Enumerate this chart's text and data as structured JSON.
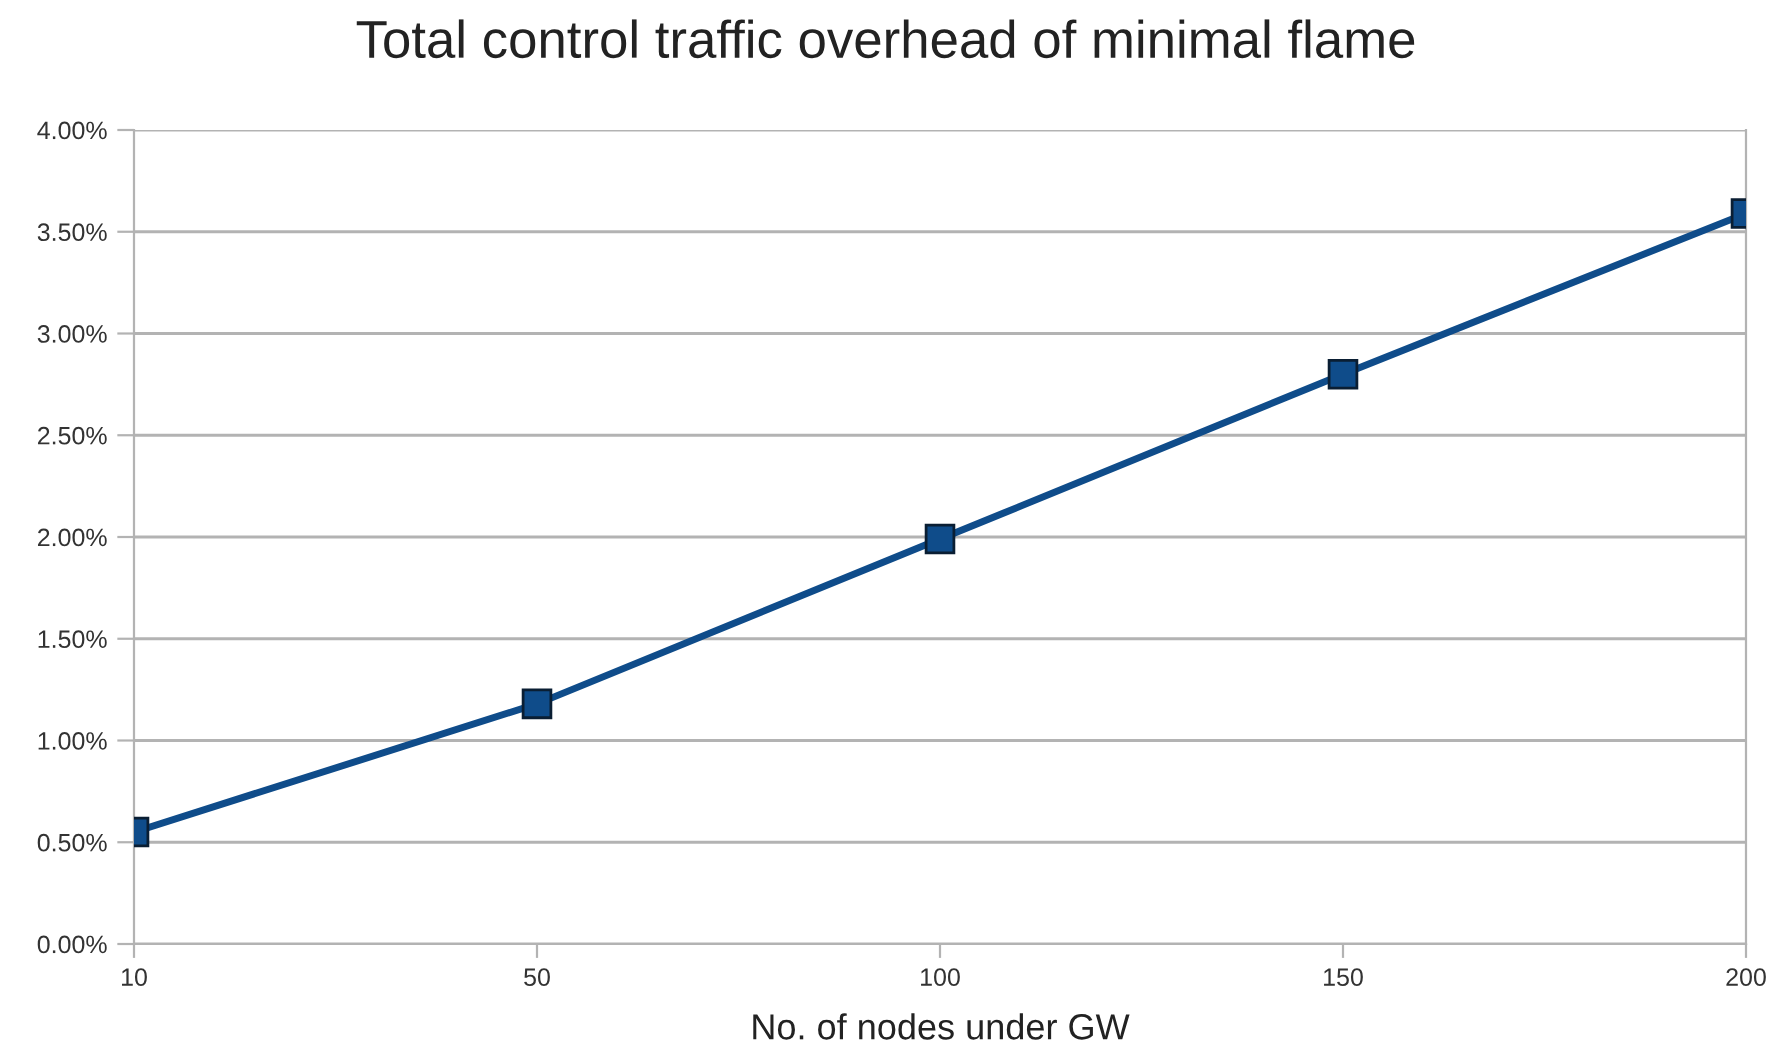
{
  "chart_data": {
    "type": "line",
    "title": "Total control traffic overhead of minimal flame",
    "xlabel": "No. of nodes under GW",
    "categories": [
      "10",
      "50",
      "100",
      "150",
      "200"
    ],
    "series": [
      {
        "color": "#0f4c8a",
        "values": [
          0.55,
          1.18,
          1.99,
          2.8,
          3.59
        ]
      }
    ],
    "ylim": [
      0,
      4
    ],
    "yticks": [
      {
        "value": 0,
        "label": "0.00%"
      },
      {
        "value": 0.5,
        "label": "0.50%"
      },
      {
        "value": 1,
        "label": "1.00%"
      },
      {
        "value": 1.5,
        "label": "1.50%"
      },
      {
        "value": 2,
        "label": "2.00%"
      },
      {
        "value": 2.5,
        "label": "2.50%"
      },
      {
        "value": 3,
        "label": "3.00%"
      },
      {
        "value": 3.5,
        "label": "3.50%"
      },
      {
        "value": 4,
        "label": "4.00%"
      }
    ],
    "grid": "y",
    "marker": "square",
    "line_style": "solid",
    "legend": false
  }
}
